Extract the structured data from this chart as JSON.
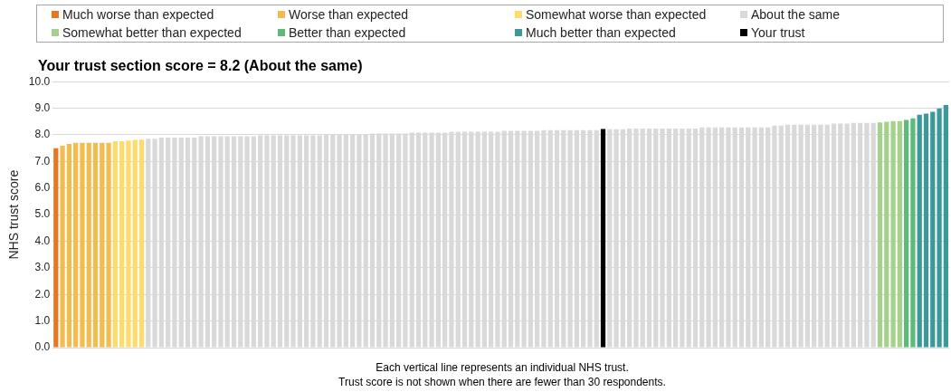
{
  "chart_data": {
    "type": "bar",
    "title": "Your trust section score = 8.2 (About the same)",
    "ylabel": "NHS trust score",
    "categories": [
      null,
      null,
      null,
      null,
      null,
      null,
      null,
      null,
      null,
      null,
      null,
      null,
      null,
      null,
      null,
      null,
      null,
      null,
      null,
      null,
      null,
      null,
      null,
      null,
      null,
      null,
      null,
      null,
      null,
      null,
      null,
      null,
      null,
      null,
      null,
      null,
      null,
      null,
      null,
      null,
      null,
      null,
      null,
      null,
      null,
      null,
      null,
      null,
      null,
      null,
      null,
      null,
      null,
      null,
      null,
      null,
      null,
      null,
      null,
      null,
      null,
      null,
      null,
      null,
      null,
      null,
      null,
      null,
      null,
      null,
      null,
      null,
      null,
      null,
      null,
      null,
      null,
      null,
      null,
      null,
      null,
      null,
      null,
      null,
      null,
      null,
      null,
      null,
      null,
      null,
      null,
      null,
      null,
      null,
      null,
      null,
      null,
      null,
      null,
      null,
      null,
      null,
      null,
      null,
      null,
      null,
      null,
      null,
      null,
      null,
      null,
      null,
      null,
      null,
      null,
      null,
      null,
      null,
      null,
      null,
      null,
      null,
      null,
      null,
      null,
      null,
      null,
      null,
      null,
      null,
      null,
      null,
      null,
      null,
      null,
      null
    ],
    "series": [
      {
        "name": "Much worse than expected",
        "color": "#e87722",
        "values": [
          7.5,
          null,
          null,
          null,
          null,
          null,
          null,
          null,
          null,
          null,
          null,
          null,
          null,
          null,
          null,
          null,
          null,
          null,
          null,
          null,
          null,
          null,
          null,
          null,
          null,
          null,
          null,
          null,
          null,
          null,
          null,
          null,
          null,
          null,
          null,
          null,
          null,
          null,
          null,
          null,
          null,
          null,
          null,
          null,
          null,
          null,
          null,
          null,
          null,
          null,
          null,
          null,
          null,
          null,
          null,
          null,
          null,
          null,
          null,
          null,
          null,
          null,
          null,
          null,
          null,
          null,
          null,
          null,
          null,
          null,
          null,
          null,
          null,
          null,
          null,
          null,
          null,
          null,
          null,
          null,
          null,
          null,
          null,
          null,
          null,
          null,
          null,
          null,
          null,
          null,
          null,
          null,
          null,
          null,
          null,
          null,
          null,
          null,
          null,
          null,
          null,
          null,
          null,
          null,
          null,
          null,
          null,
          null,
          null,
          null,
          null,
          null,
          null,
          null,
          null,
          null,
          null,
          null,
          null,
          null,
          null,
          null,
          null,
          null,
          null,
          null,
          null,
          null,
          null,
          null,
          null,
          null,
          null,
          null,
          null,
          null
        ]
      },
      {
        "name": "Worse than expected",
        "color": "#f2bc4e",
        "values": [
          null,
          7.59,
          7.66,
          7.7,
          7.7,
          7.7,
          7.7,
          7.7,
          7.7,
          null,
          null,
          null,
          null,
          null,
          null,
          null,
          null,
          null,
          null,
          null,
          null,
          null,
          null,
          null,
          null,
          null,
          null,
          null,
          null,
          null,
          null,
          null,
          null,
          null,
          null,
          null,
          null,
          null,
          null,
          null,
          null,
          null,
          null,
          null,
          null,
          null,
          null,
          null,
          null,
          null,
          null,
          null,
          null,
          null,
          null,
          null,
          null,
          null,
          null,
          null,
          null,
          null,
          null,
          null,
          null,
          null,
          null,
          null,
          null,
          null,
          null,
          null,
          null,
          null,
          null,
          null,
          null,
          null,
          null,
          null,
          null,
          null,
          null,
          null,
          null,
          null,
          null,
          null,
          null,
          null,
          null,
          null,
          null,
          null,
          null,
          null,
          null,
          null,
          null,
          null,
          null,
          null,
          null,
          null,
          null,
          null,
          null,
          null,
          null,
          null,
          null,
          null,
          null,
          null,
          null,
          null,
          null,
          null,
          null,
          null,
          null,
          null,
          null,
          null,
          null,
          null,
          null,
          null,
          null,
          null,
          null,
          null,
          null,
          null,
          null,
          null
        ]
      },
      {
        "name": "Somewhat worse than expected",
        "color": "#fedc6b",
        "values": [
          null,
          null,
          null,
          null,
          null,
          null,
          null,
          null,
          null,
          7.76,
          7.76,
          7.79,
          7.81,
          7.82,
          null,
          null,
          null,
          null,
          null,
          null,
          null,
          null,
          null,
          null,
          null,
          null,
          null,
          null,
          null,
          null,
          null,
          null,
          null,
          null,
          null,
          null,
          null,
          null,
          null,
          null,
          null,
          null,
          null,
          null,
          null,
          null,
          null,
          null,
          null,
          null,
          null,
          null,
          null,
          null,
          null,
          null,
          null,
          null,
          null,
          null,
          null,
          null,
          null,
          null,
          null,
          null,
          null,
          null,
          null,
          null,
          null,
          null,
          null,
          null,
          null,
          null,
          null,
          null,
          null,
          null,
          null,
          null,
          null,
          null,
          null,
          null,
          null,
          null,
          null,
          null,
          null,
          null,
          null,
          null,
          null,
          null,
          null,
          null,
          null,
          null,
          null,
          null,
          null,
          null,
          null,
          null,
          null,
          null,
          null,
          null,
          null,
          null,
          null,
          null,
          null,
          null,
          null,
          null,
          null,
          null,
          null,
          null,
          null,
          null,
          null,
          null,
          null,
          null,
          null,
          null,
          null,
          null,
          null,
          null,
          null,
          null
        ]
      },
      {
        "name": "About the same",
        "color": "#d9d9d9",
        "values": [
          null,
          null,
          null,
          null,
          null,
          null,
          null,
          null,
          null,
          null,
          null,
          null,
          null,
          null,
          7.85,
          7.85,
          7.9,
          7.9,
          7.9,
          7.9,
          7.9,
          7.9,
          7.95,
          7.95,
          7.95,
          7.95,
          7.95,
          7.95,
          7.95,
          7.95,
          7.95,
          7.98,
          7.98,
          7.98,
          7.98,
          7.98,
          7.98,
          7.98,
          7.98,
          7.98,
          7.98,
          8.02,
          8.02,
          8.02,
          8.02,
          8.02,
          8.02,
          8.02,
          8.05,
          8.05,
          8.05,
          8.05,
          8.05,
          8.05,
          8.08,
          8.08,
          8.08,
          8.08,
          8.08,
          8.08,
          8.12,
          8.12,
          8.12,
          8.12,
          8.12,
          8.12,
          8.12,
          8.12,
          8.15,
          8.15,
          8.15,
          8.15,
          8.15,
          8.15,
          8.18,
          8.18,
          8.18,
          8.18,
          8.18,
          8.18,
          8.18,
          8.18,
          8.18,
          null,
          8.21,
          8.21,
          8.21,
          8.24,
          8.24,
          8.24,
          8.24,
          8.24,
          8.24,
          8.24,
          8.24,
          8.24,
          8.24,
          8.24,
          8.28,
          8.28,
          8.28,
          8.28,
          8.28,
          8.28,
          8.28,
          8.28,
          8.28,
          8.28,
          8.28,
          8.35,
          8.35,
          8.38,
          8.38,
          8.38,
          8.38,
          8.38,
          8.38,
          8.38,
          8.42,
          8.42,
          8.42,
          8.45,
          8.45,
          8.45,
          8.45,
          null,
          null,
          null,
          null,
          null,
          null,
          null,
          null,
          null,
          null,
          null
        ]
      },
      {
        "name": "Somewhat better than expected",
        "color": "#a6d18b",
        "values": [
          null,
          null,
          null,
          null,
          null,
          null,
          null,
          null,
          null,
          null,
          null,
          null,
          null,
          null,
          null,
          null,
          null,
          null,
          null,
          null,
          null,
          null,
          null,
          null,
          null,
          null,
          null,
          null,
          null,
          null,
          null,
          null,
          null,
          null,
          null,
          null,
          null,
          null,
          null,
          null,
          null,
          null,
          null,
          null,
          null,
          null,
          null,
          null,
          null,
          null,
          null,
          null,
          null,
          null,
          null,
          null,
          null,
          null,
          null,
          null,
          null,
          null,
          null,
          null,
          null,
          null,
          null,
          null,
          null,
          null,
          null,
          null,
          null,
          null,
          null,
          null,
          null,
          null,
          null,
          null,
          null,
          null,
          null,
          null,
          null,
          null,
          null,
          null,
          null,
          null,
          null,
          null,
          null,
          null,
          null,
          null,
          null,
          null,
          null,
          null,
          null,
          null,
          null,
          null,
          null,
          null,
          null,
          null,
          null,
          null,
          null,
          null,
          null,
          null,
          null,
          null,
          null,
          null,
          null,
          null,
          null,
          null,
          null,
          null,
          null,
          8.47,
          8.49,
          8.52,
          8.52,
          null,
          null,
          null,
          null,
          null,
          null,
          null
        ]
      },
      {
        "name": "Better than expected",
        "color": "#5dba7a",
        "values": [
          null,
          null,
          null,
          null,
          null,
          null,
          null,
          null,
          null,
          null,
          null,
          null,
          null,
          null,
          null,
          null,
          null,
          null,
          null,
          null,
          null,
          null,
          null,
          null,
          null,
          null,
          null,
          null,
          null,
          null,
          null,
          null,
          null,
          null,
          null,
          null,
          null,
          null,
          null,
          null,
          null,
          null,
          null,
          null,
          null,
          null,
          null,
          null,
          null,
          null,
          null,
          null,
          null,
          null,
          null,
          null,
          null,
          null,
          null,
          null,
          null,
          null,
          null,
          null,
          null,
          null,
          null,
          null,
          null,
          null,
          null,
          null,
          null,
          null,
          null,
          null,
          null,
          null,
          null,
          null,
          null,
          null,
          null,
          null,
          null,
          null,
          null,
          null,
          null,
          null,
          null,
          null,
          null,
          null,
          null,
          null,
          null,
          null,
          null,
          null,
          null,
          null,
          null,
          null,
          null,
          null,
          null,
          null,
          null,
          null,
          null,
          null,
          null,
          null,
          null,
          null,
          null,
          null,
          null,
          null,
          null,
          null,
          null,
          null,
          null,
          null,
          null,
          null,
          null,
          8.56,
          8.62,
          null,
          null,
          null,
          null,
          null
        ]
      },
      {
        "name": "Much better than expected",
        "color": "#3b9a99",
        "values": [
          null,
          null,
          null,
          null,
          null,
          null,
          null,
          null,
          null,
          null,
          null,
          null,
          null,
          null,
          null,
          null,
          null,
          null,
          null,
          null,
          null,
          null,
          null,
          null,
          null,
          null,
          null,
          null,
          null,
          null,
          null,
          null,
          null,
          null,
          null,
          null,
          null,
          null,
          null,
          null,
          null,
          null,
          null,
          null,
          null,
          null,
          null,
          null,
          null,
          null,
          null,
          null,
          null,
          null,
          null,
          null,
          null,
          null,
          null,
          null,
          null,
          null,
          null,
          null,
          null,
          null,
          null,
          null,
          null,
          null,
          null,
          null,
          null,
          null,
          null,
          null,
          null,
          null,
          null,
          null,
          null,
          null,
          null,
          null,
          null,
          null,
          null,
          null,
          null,
          null,
          null,
          null,
          null,
          null,
          null,
          null,
          null,
          null,
          null,
          null,
          null,
          null,
          null,
          null,
          null,
          null,
          null,
          null,
          null,
          null,
          null,
          null,
          null,
          null,
          null,
          null,
          null,
          null,
          null,
          null,
          null,
          null,
          null,
          null,
          null,
          null,
          null,
          null,
          null,
          null,
          null,
          8.76,
          8.8,
          8.87,
          8.99,
          9.12
        ]
      },
      {
        "name": "Your trust",
        "color": "#000000",
        "values": [
          null,
          null,
          null,
          null,
          null,
          null,
          null,
          null,
          null,
          null,
          null,
          null,
          null,
          null,
          null,
          null,
          null,
          null,
          null,
          null,
          null,
          null,
          null,
          null,
          null,
          null,
          null,
          null,
          null,
          null,
          null,
          null,
          null,
          null,
          null,
          null,
          null,
          null,
          null,
          null,
          null,
          null,
          null,
          null,
          null,
          null,
          null,
          null,
          null,
          null,
          null,
          null,
          null,
          null,
          null,
          null,
          null,
          null,
          null,
          null,
          null,
          null,
          null,
          null,
          null,
          null,
          null,
          null,
          null,
          null,
          null,
          null,
          null,
          null,
          null,
          null,
          null,
          null,
          null,
          null,
          null,
          null,
          null,
          8.22,
          null,
          null,
          null,
          null,
          null,
          null,
          null,
          null,
          null,
          null,
          null,
          null,
          null,
          null,
          null,
          null,
          null,
          null,
          null,
          null,
          null,
          null,
          null,
          null,
          null,
          null,
          null,
          null,
          null,
          null,
          null,
          null,
          null,
          null,
          null,
          null,
          null,
          null,
          null,
          null,
          null,
          null,
          null,
          null,
          null,
          null,
          null,
          null,
          null,
          null,
          null,
          null
        ]
      }
    ],
    "ylim": [
      0,
      10
    ],
    "yticks": [
      {
        "value": 0,
        "label": "0.0"
      },
      {
        "value": 1,
        "label": "1.0"
      },
      {
        "value": 2,
        "label": "2.0"
      },
      {
        "value": 3,
        "label": "3.0"
      },
      {
        "value": 4,
        "label": "4.0"
      },
      {
        "value": 5,
        "label": "5.0"
      },
      {
        "value": 6,
        "label": "6.0"
      },
      {
        "value": 7,
        "label": "7.0"
      },
      {
        "value": 8,
        "label": "8.0"
      },
      {
        "value": 9,
        "label": "9.0"
      },
      {
        "value": 10,
        "label": "10.0"
      }
    ],
    "grid": "y",
    "legend": "top",
    "tick_labels": "y",
    "annotations": [
      "Each vertical line represents an individual  NHS trust.",
      "Trust score is not shown when there are fewer than 30 respondents."
    ]
  }
}
